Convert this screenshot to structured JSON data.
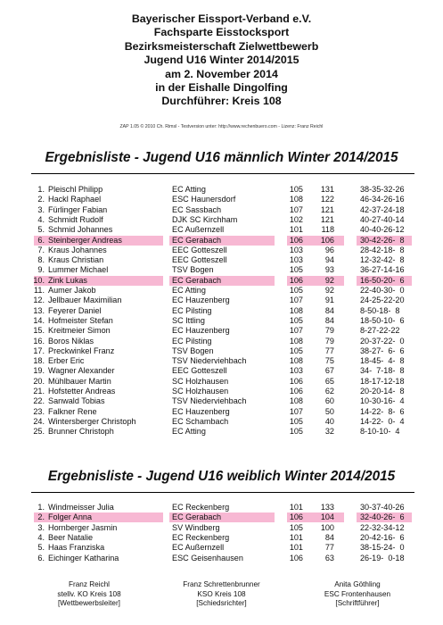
{
  "header": {
    "lines": [
      "Bayerischer Eissport-Verband e.V.",
      "Fachsparte Eisstocksport",
      "Bezirksmeisterschaft Zielwettbewerb",
      "Jugend U16 Winter 2014/2015",
      "am 2. November 2014",
      "in der Eishalle Dingolfing",
      "Durchführer: Kreis 108"
    ],
    "software_note": "ZAP 1.05 © 2010 Ch. Rimsl - Testversion unter: http://www.rechenbuero.com - Lizenz: Franz Reichl"
  },
  "sections": [
    {
      "title": "Ergebnisliste - Jugend U16 männlich Winter 2014/2015",
      "rows": [
        {
          "rank": "1.",
          "name": "Pleischl Philipp",
          "club": "EC Atting",
          "kreis": "105",
          "points": "131",
          "series": "38-35-32-26",
          "highlight": false
        },
        {
          "rank": "2.",
          "name": "Hackl Raphael",
          "club": "ESC Haunersdorf",
          "kreis": "108",
          "points": "122",
          "series": "46-34-26-16",
          "highlight": false
        },
        {
          "rank": "3.",
          "name": "Fürlinger Fabian",
          "club": "EC Sassbach",
          "kreis": "107",
          "points": "121",
          "series": "42-37-24-18",
          "highlight": false
        },
        {
          "rank": "4.",
          "name": "Schmidt Rudolf",
          "club": "DJK SC Kirchham",
          "kreis": "102",
          "points": "121",
          "series": "40-27-40-14",
          "highlight": false
        },
        {
          "rank": "5.",
          "name": "Schmid Johannes",
          "club": "EC Außernzell",
          "kreis": "101",
          "points": "118",
          "series": "40-40-26-12",
          "highlight": false
        },
        {
          "rank": "6.",
          "name": "Steinberger Andreas",
          "club": "EC Gerabach",
          "kreis": "106",
          "points": "106",
          "series": "30-42-26-  8",
          "highlight": true
        },
        {
          "rank": "7.",
          "name": "Kraus Johannes",
          "club": "EEC Gotteszell",
          "kreis": "103",
          "points": "96",
          "series": "28-42-18-  8",
          "highlight": false
        },
        {
          "rank": "8.",
          "name": "Kraus Christian",
          "club": "EEC Gotteszell",
          "kreis": "103",
          "points": "94",
          "series": "12-32-42-  8",
          "highlight": false
        },
        {
          "rank": "9.",
          "name": "Lummer Michael",
          "club": "TSV Bogen",
          "kreis": "105",
          "points": "93",
          "series": "36-27-14-16",
          "highlight": false
        },
        {
          "rank": "10.",
          "name": "Zink Lukas",
          "club": "EC Gerabach",
          "kreis": "106",
          "points": "92",
          "series": "16-50-20-  6",
          "highlight": true
        },
        {
          "rank": "11.",
          "name": "Aumer Jakob",
          "club": "EC Atting",
          "kreis": "105",
          "points": "92",
          "series": "22-40-30-  0",
          "highlight": false
        },
        {
          "rank": "12.",
          "name": "Jellbauer Maximilian",
          "club": "EC Hauzenberg",
          "kreis": "107",
          "points": "91",
          "series": "24-25-22-20",
          "highlight": false
        },
        {
          "rank": "13.",
          "name": "Feyerer Daniel",
          "club": "EC Pilsting",
          "kreis": "108",
          "points": "84",
          "series": "8-50-18-  8",
          "highlight": false
        },
        {
          "rank": "14.",
          "name": "Hofmeister Stefan",
          "club": "SC Ittling",
          "kreis": "105",
          "points": "84",
          "series": "18-50-10-  6",
          "highlight": false
        },
        {
          "rank": "15.",
          "name": "Kreitmeier Simon",
          "club": "EC Hauzenberg",
          "kreis": "107",
          "points": "79",
          "series": "8-27-22-22",
          "highlight": false
        },
        {
          "rank": "16.",
          "name": "Boros Niklas",
          "club": "EC Pilsting",
          "kreis": "108",
          "points": "79",
          "series": "20-37-22-  0",
          "highlight": false
        },
        {
          "rank": "17.",
          "name": "Preckwinkel Franz",
          "club": "TSV Bogen",
          "kreis": "105",
          "points": "77",
          "series": "38-27-  6-  6",
          "highlight": false
        },
        {
          "rank": "18.",
          "name": "Erber Eric",
          "club": "TSV Niederviehbach",
          "kreis": "108",
          "points": "75",
          "series": "18-45-  4-  8",
          "highlight": false
        },
        {
          "rank": "19.",
          "name": "Wagner Alexander",
          "club": "EEC Gotteszell",
          "kreis": "103",
          "points": "67",
          "series": "34-  7-18-  8",
          "highlight": false
        },
        {
          "rank": "20.",
          "name": "Mühlbauer Martin",
          "club": "SC Holzhausen",
          "kreis": "106",
          "points": "65",
          "series": "18-17-12-18",
          "highlight": false
        },
        {
          "rank": "21.",
          "name": "Hofstetter Andreas",
          "club": "SC Holzhausen",
          "kreis": "106",
          "points": "62",
          "series": "20-20-14-  8",
          "highlight": false
        },
        {
          "rank": "22.",
          "name": "Sanwald Tobias",
          "club": "TSV Niederviehbach",
          "kreis": "108",
          "points": "60",
          "series": "10-30-16-  4",
          "highlight": false
        },
        {
          "rank": "23.",
          "name": "Falkner Rene",
          "club": "EC Hauzenberg",
          "kreis": "107",
          "points": "50",
          "series": "14-22-  8-  6",
          "highlight": false
        },
        {
          "rank": "24.",
          "name": "Wintersberger Christoph",
          "club": "EC Schambach",
          "kreis": "105",
          "points": "40",
          "series": "14-22-  0-  4",
          "highlight": false
        },
        {
          "rank": "25.",
          "name": "Brunner Christoph",
          "club": "EC Atting",
          "kreis": "105",
          "points": "32",
          "series": "8-10-10-  4",
          "highlight": false
        }
      ]
    },
    {
      "title": "Ergebnisliste - Jugend U16 weiblich Winter 2014/2015",
      "rows": [
        {
          "rank": "1.",
          "name": "Windmeisser Julia",
          "club": "EC Reckenberg",
          "kreis": "101",
          "points": "133",
          "series": "30-37-40-26",
          "highlight": false
        },
        {
          "rank": "2.",
          "name": "Folger Anna",
          "club": "EC Gerabach",
          "kreis": "106",
          "points": "104",
          "series": "32-40-26-  6",
          "highlight": true
        },
        {
          "rank": "3.",
          "name": "Hornberger Jasmin",
          "club": "SV Windberg",
          "kreis": "105",
          "points": "100",
          "series": "22-32-34-12",
          "highlight": false
        },
        {
          "rank": "4.",
          "name": "Beer Natalie",
          "club": "EC Reckenberg",
          "kreis": "101",
          "points": "84",
          "series": "20-42-16-  6",
          "highlight": false
        },
        {
          "rank": "5.",
          "name": "Haas Franziska",
          "club": "EC Außernzell",
          "kreis": "101",
          "points": "77",
          "series": "38-15-24-  0",
          "highlight": false
        },
        {
          "rank": "6.",
          "name": "Eichinger Katharina",
          "club": "ESC Geisenhausen",
          "kreis": "106",
          "points": "63",
          "series": "26-19-  0-18",
          "highlight": false
        }
      ]
    }
  ],
  "footer": [
    {
      "name": "Franz Reichl",
      "role": "stellv. KO Kreis 108",
      "function": "[Wettbewerbsleiter]"
    },
    {
      "name": "Franz Schrettenbrunner",
      "role": "KSO Kreis 108",
      "function": "[Schiedsrichter]"
    },
    {
      "name": "Anita Göthling",
      "role": "ESC Frontenhausen",
      "function": "[Schriftführer]"
    }
  ]
}
